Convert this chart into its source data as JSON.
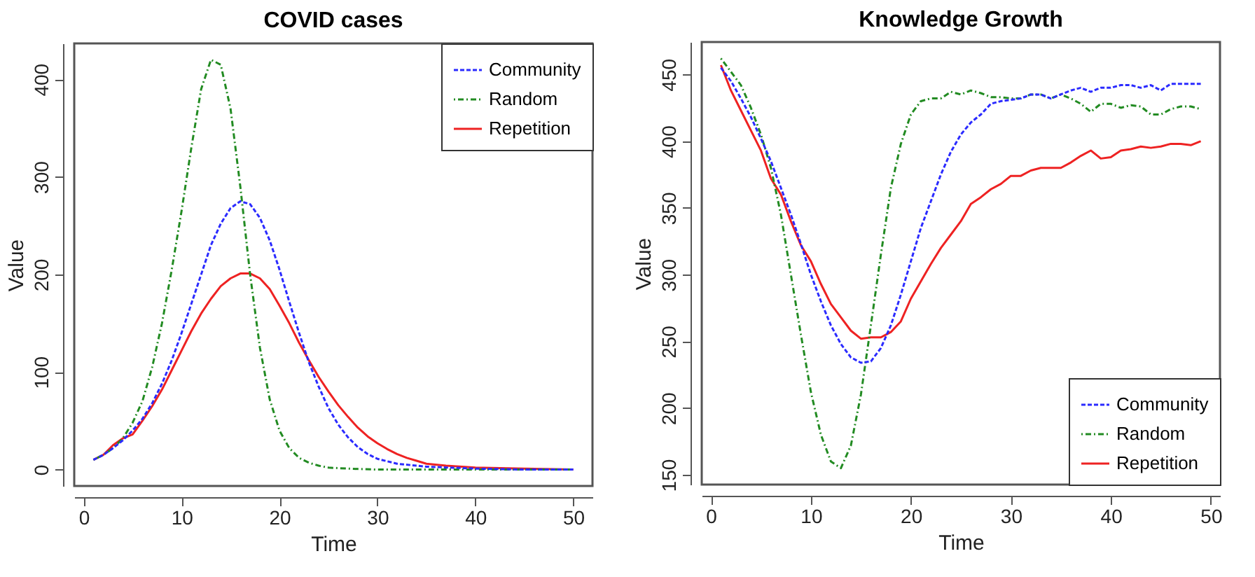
{
  "chart_data": [
    {
      "type": "line",
      "title": "COVID cases",
      "xlabel": "Time",
      "ylabel": "Value",
      "xlim": [
        -0.96,
        51.96
      ],
      "ylim": [
        -16.8,
        436.8
      ],
      "xticks": [
        0,
        10,
        20,
        30,
        40,
        50
      ],
      "yticks": [
        0,
        100,
        200,
        300,
        400
      ],
      "legend": "top right",
      "grid": false,
      "series": [
        {
          "name": "Community",
          "color": "#2b2bff",
          "line_style": "dashed",
          "x": [
            1,
            2,
            3,
            4,
            5,
            6,
            7,
            8,
            9,
            10,
            11,
            12,
            13,
            14,
            15,
            16,
            17,
            18,
            19,
            20,
            21,
            22,
            23,
            24,
            25,
            26,
            27,
            28,
            29,
            30,
            32,
            35,
            40,
            45,
            50
          ],
          "values": [
            10,
            15,
            22,
            30,
            40,
            52,
            68,
            88,
            112,
            140,
            170,
            200,
            230,
            252,
            268,
            275,
            272,
            258,
            235,
            205,
            172,
            140,
            110,
            85,
            63,
            46,
            33,
            23,
            16,
            11,
            6,
            3,
            1,
            0,
            0
          ]
        },
        {
          "name": "Random",
          "color": "#228b22",
          "line_style": "dashdot",
          "x": [
            1,
            2,
            3,
            4,
            5,
            6,
            7,
            8,
            9,
            10,
            11,
            12,
            13,
            14,
            15,
            16,
            17,
            18,
            19,
            20,
            21,
            22,
            23,
            24,
            25,
            27,
            30,
            40,
            50
          ],
          "values": [
            10,
            15,
            22,
            32,
            48,
            70,
            105,
            150,
            205,
            265,
            330,
            390,
            420,
            415,
            370,
            290,
            200,
            125,
            72,
            40,
            22,
            12,
            7,
            4,
            2,
            1,
            0,
            0,
            0
          ]
        },
        {
          "name": "Repetition",
          "color": "#ee2222",
          "line_style": "solid",
          "x": [
            1,
            2,
            3,
            4,
            5,
            6,
            7,
            8,
            9,
            10,
            11,
            12,
            13,
            14,
            15,
            16,
            17,
            18,
            19,
            20,
            21,
            22,
            23,
            24,
            25,
            26,
            27,
            28,
            29,
            30,
            31,
            32,
            33,
            34,
            35,
            37,
            40,
            45,
            50
          ],
          "values": [
            10,
            15,
            25,
            32,
            36,
            50,
            65,
            82,
            102,
            122,
            142,
            160,
            175,
            188,
            196,
            201,
            201,
            196,
            185,
            168,
            150,
            130,
            112,
            95,
            80,
            66,
            54,
            43,
            34,
            27,
            21,
            16,
            12,
            9,
            6,
            4,
            2,
            1,
            0
          ]
        }
      ]
    },
    {
      "type": "line",
      "title": "Knowledge Growth",
      "xlabel": "Time",
      "ylabel": "Value",
      "xlim": [
        -0.92,
        50.92
      ],
      "ylim": [
        142.7,
        474.3
      ],
      "xticks": [
        0,
        10,
        20,
        30,
        40,
        50
      ],
      "yticks": [
        150,
        200,
        250,
        300,
        350,
        400,
        450
      ],
      "legend": "bottom right",
      "grid": false,
      "x": [
        1,
        2,
        3,
        4,
        5,
        6,
        7,
        8,
        9,
        10,
        11,
        12,
        13,
        14,
        15,
        16,
        17,
        18,
        19,
        20,
        21,
        22,
        23,
        24,
        25,
        26,
        27,
        28,
        29,
        30,
        31,
        32,
        33,
        34,
        35,
        36,
        37,
        38,
        39,
        40,
        41,
        42,
        43,
        44,
        45,
        46,
        47,
        48,
        49
      ],
      "series": [
        {
          "name": "Community",
          "color": "#2b2bff",
          "line_style": "dashed",
          "values": [
            455,
            445,
            432,
            418,
            402,
            385,
            365,
            345,
            323,
            300,
            280,
            262,
            248,
            238,
            234,
            235,
            245,
            262,
            285,
            310,
            335,
            355,
            375,
            392,
            405,
            414,
            420,
            428,
            430,
            431,
            432,
            435,
            435,
            432,
            435,
            438,
            440,
            437,
            440,
            440,
            442,
            442,
            440,
            442,
            438,
            443,
            443,
            443,
            443
          ]
        },
        {
          "name": "Random",
          "color": "#228b22",
          "line_style": "dashdot",
          "values": [
            462,
            452,
            442,
            425,
            405,
            380,
            345,
            300,
            255,
            212,
            180,
            160,
            155,
            172,
            210,
            262,
            315,
            365,
            398,
            420,
            430,
            432,
            432,
            437,
            435,
            438,
            436,
            433,
            433,
            432,
            432,
            435,
            435,
            432,
            435,
            432,
            428,
            422,
            428,
            428,
            425,
            427,
            426,
            420,
            420,
            424,
            426,
            426,
            424
          ]
        },
        {
          "name": "Repetition",
          "color": "#ee2222",
          "line_style": "solid",
          "values": [
            457,
            438,
            423,
            408,
            393,
            372,
            360,
            340,
            322,
            310,
            293,
            278,
            268,
            258,
            252,
            253,
            253,
            257,
            265,
            282,
            295,
            308,
            320,
            330,
            340,
            353,
            358,
            364,
            368,
            374,
            374,
            378,
            380,
            380,
            380,
            384,
            389,
            393,
            387,
            388,
            393,
            394,
            396,
            395,
            396,
            398,
            398,
            397,
            400
          ]
        }
      ]
    }
  ]
}
